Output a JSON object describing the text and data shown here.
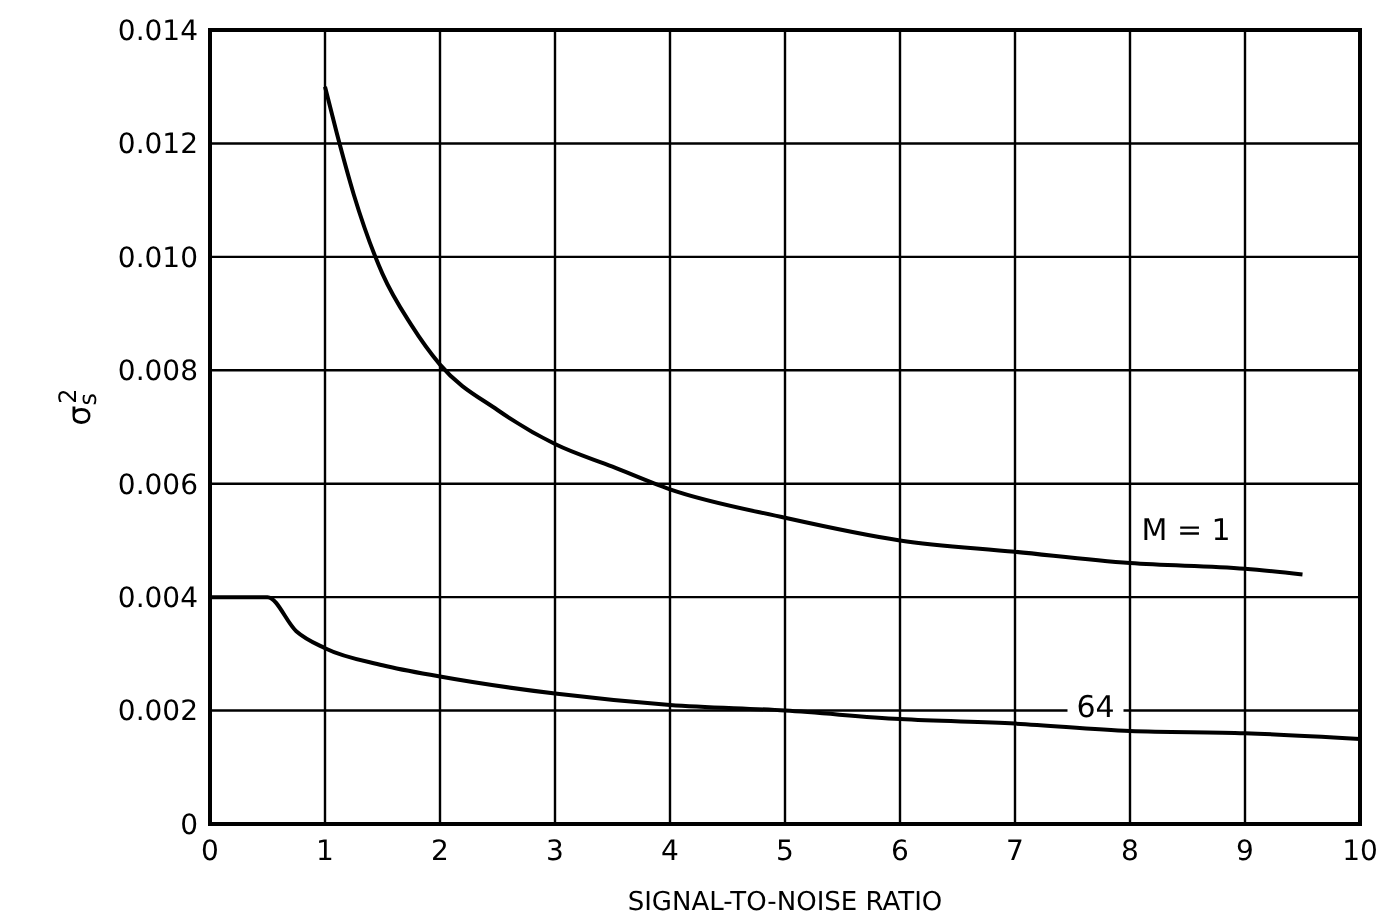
{
  "chart_data": {
    "type": "line",
    "xlabel": "SIGNAL-TO-NOISE RATIO",
    "ylabel": "σ$_{s}$$^{2}$",
    "xlim": [
      0,
      10
    ],
    "xticks": [
      0,
      1,
      2,
      3,
      4,
      5,
      6,
      7,
      8,
      9,
      10
    ],
    "ylim": [
      0,
      0.014
    ],
    "yticks": [
      0,
      0.002,
      0.004,
      0.006,
      0.008,
      {
        "value": 0.01,
        "label": "0.010"
      },
      0.012,
      0.014
    ],
    "grid": true,
    "marker": "none",
    "line_style": "solid",
    "series": [
      {
        "name": "M = 1",
        "color": "#000000",
        "x": [
          1,
          1.1,
          1.25,
          1.5,
          1.75,
          2,
          2.5,
          3,
          3.5,
          4,
          5,
          6,
          7,
          8,
          9,
          9.5
        ],
        "values": [
          0.013,
          0.0122,
          0.0111,
          0.0097,
          0.0088,
          0.0081,
          0.0073,
          0.0067,
          0.0063,
          0.0059,
          0.0054,
          0.005,
          0.0048,
          0.0046,
          0.0045,
          0.0044
        ]
      },
      {
        "name": "64",
        "color": "#000000",
        "x": [
          0,
          0.5,
          0.75,
          1,
          1.5,
          2,
          3,
          4,
          5,
          6,
          7,
          8,
          9,
          10
        ],
        "values": [
          0.004,
          0.004,
          0.0034,
          0.0031,
          0.0028,
          0.0026,
          0.0023,
          0.0021,
          0.002,
          0.00185,
          0.00177,
          0.00164,
          0.0016,
          0.0015
        ]
      }
    ]
  }
}
